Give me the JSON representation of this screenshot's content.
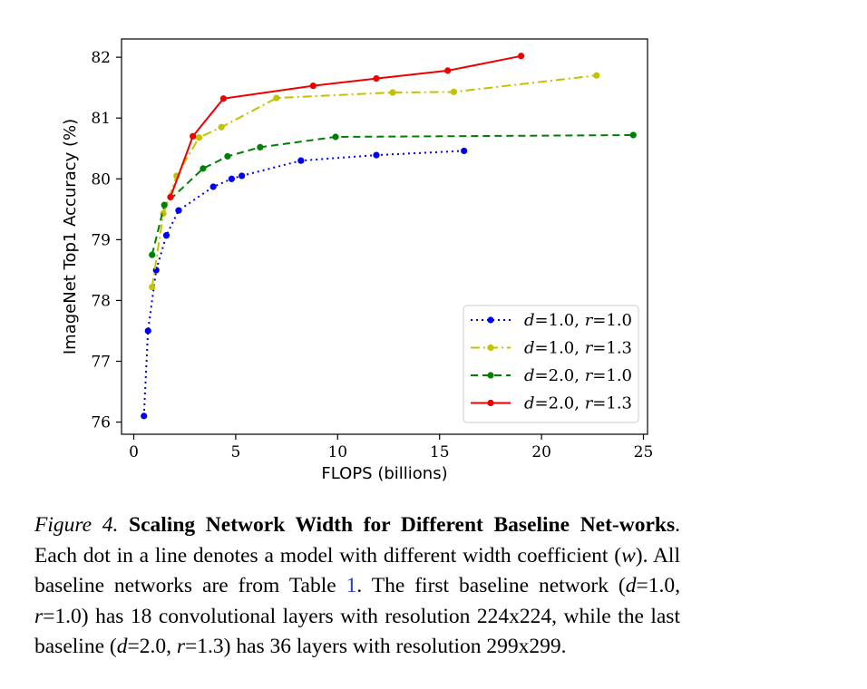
{
  "chart_data": {
    "type": "line",
    "xlabel": "FLOPS (billions)",
    "ylabel": "ImageNet Top1 Accuracy (%)",
    "xlim": [
      -0.6,
      25.2
    ],
    "ylim": [
      75.8,
      82.3
    ],
    "xticks": [
      0,
      5,
      10,
      15,
      20,
      25
    ],
    "yticks": [
      76,
      77,
      78,
      79,
      80,
      81,
      82
    ],
    "legend_position": "lower right",
    "series": [
      {
        "name": "d=1.0, r=1.0",
        "legend_d": "d",
        "legend_d_val": "=1.0, ",
        "legend_r": "r",
        "legend_r_val": "=1.0",
        "color": "#0000ee",
        "dash": "dotted",
        "x": [
          0.5,
          0.7,
          1.1,
          1.6,
          2.2,
          3.9,
          4.8,
          5.3,
          8.2,
          11.9,
          16.2
        ],
        "y": [
          76.1,
          77.5,
          78.5,
          79.07,
          79.48,
          79.87,
          80.0,
          80.05,
          80.3,
          80.39,
          80.46
        ]
      },
      {
        "name": "d=1.0, r=1.3",
        "legend_d": "d",
        "legend_d_val": "=1.0, ",
        "legend_r": "r",
        "legend_r_val": "=1.3",
        "color": "#c4c200",
        "dash": "dashdot",
        "x": [
          0.9,
          1.45,
          2.1,
          3.2,
          4.3,
          7.0,
          12.7,
          15.7,
          22.7
        ],
        "y": [
          78.22,
          79.43,
          80.05,
          80.68,
          80.85,
          81.33,
          81.42,
          81.43,
          81.7
        ]
      },
      {
        "name": "d=2.0, r=1.0",
        "legend_d": "d",
        "legend_d_val": "=2.0, ",
        "legend_r": "r",
        "legend_r_val": "=1.0",
        "color": "#008000",
        "dash": "dashed",
        "x": [
          0.9,
          1.5,
          3.4,
          4.6,
          6.2,
          9.9,
          24.5
        ],
        "y": [
          78.75,
          79.57,
          80.17,
          80.37,
          80.52,
          80.69,
          80.72
        ]
      },
      {
        "name": "d=2.0, r=1.3",
        "legend_d": "d",
        "legend_d_val": "=2.0, ",
        "legend_r": "r",
        "legend_r_val": "=1.3",
        "color": "#ee0000",
        "dash": "solid",
        "x": [
          1.8,
          2.9,
          4.4,
          8.8,
          11.9,
          15.4,
          19.0
        ],
        "y": [
          79.7,
          80.7,
          81.32,
          81.53,
          81.65,
          81.78,
          82.02
        ]
      }
    ]
  },
  "caption": {
    "fig_label": "Figure 4.",
    "bold_title": "Scaling Network Width for Different Baseline Net-works",
    "text_1": ". Each dot in a line denotes a model with different width coefficient (",
    "w": "w",
    "text_2": "). All baseline networks are from Table ",
    "table_ref": "1",
    "text_3": ". The first baseline network (",
    "d1": "d",
    "text_4": "=1.0, ",
    "r1": "r",
    "text_5": "=1.0) has 18 convolutional layers with resolution 224x224, while the last baseline (",
    "d2": "d",
    "text_6": "=2.0, ",
    "r2": "r",
    "text_7": "=1.3) has 36 layers with resolution 299x299."
  }
}
